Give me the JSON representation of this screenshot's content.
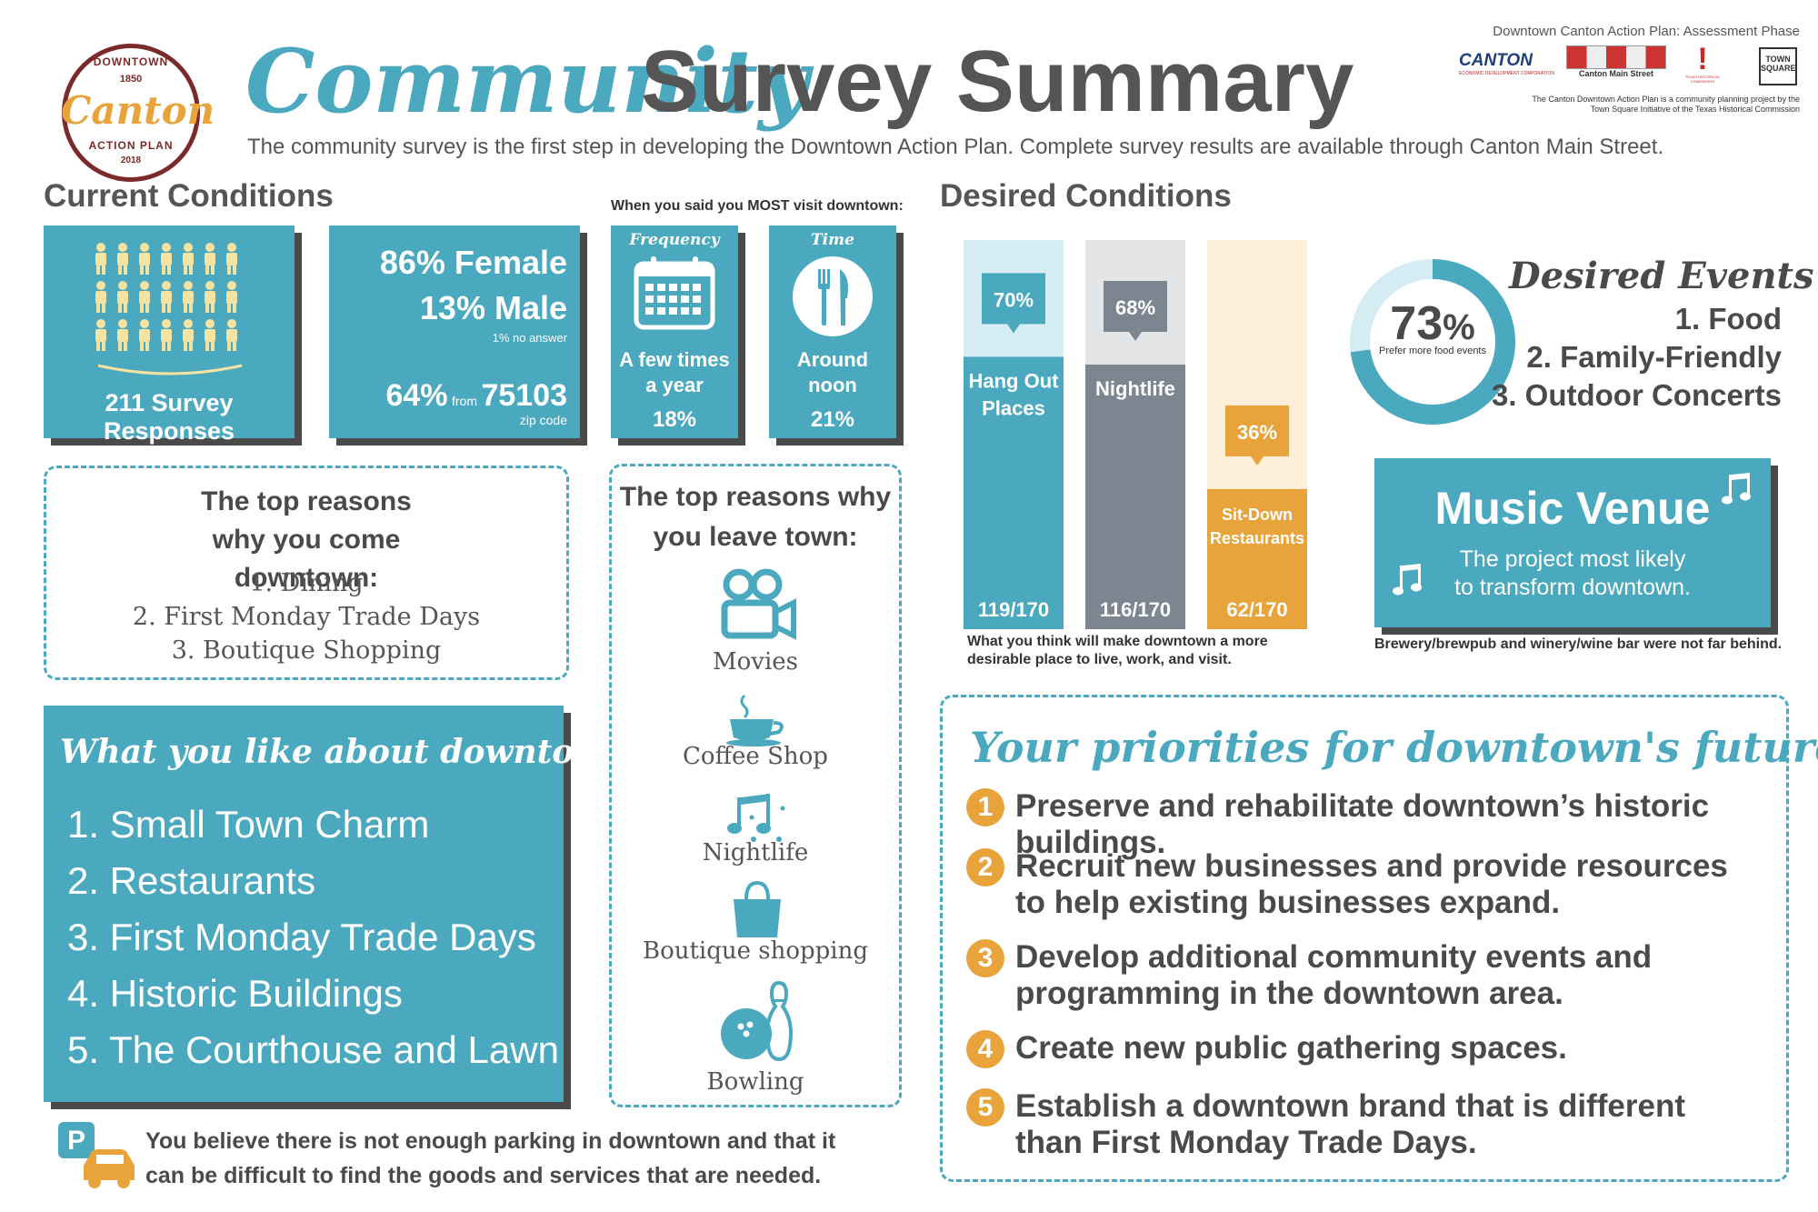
{
  "header": {
    "logo_line1": "DOWNTOWN",
    "logo_word": "Canton",
    "logo_year": "1850",
    "logo_line2": "ACTION PLAN",
    "logo_year2": "2018",
    "title_script": "Community",
    "title_main": "Survey Summary",
    "subtitle": "The community survey is the first step in developing the Downtown Action Plan. Complete survey results are available through Canton Main Street.",
    "phase": "Downtown Canton Action Plan: Assessment Phase",
    "partner1": "CANTON",
    "partner1_sub": "ECONOMIC DEVELOPMENT CORPORATION",
    "partner2": "Canton Main Street",
    "partner3": "TEXAS HISTORICAL COMMISSION",
    "partner4": "TOWN SQUARE",
    "credit": "The Canton Downtown Action Plan is a community planning project by the Town Square Initiative of the Texas Historical Commission"
  },
  "current": {
    "heading": "Current Conditions",
    "responses": "211 Survey Responses",
    "female": "86% Female",
    "male": "13% Male",
    "no_answer": "1% no answer",
    "zip_pct": "64%",
    "zip_from": "from",
    "zip_code": "75103",
    "zip_label": "zip code",
    "visit_caption": "When you said you MOST visit downtown:",
    "freq_label": "Frequency",
    "freq_value": "A few times a year",
    "freq_pct": "18%",
    "time_label": "Time",
    "time_value": "Around noon",
    "time_pct": "21%"
  },
  "reasons_come": {
    "heading": "The top reasons why you come downtown:",
    "items": [
      "1. Dining",
      "2. First Monday Trade Days",
      "3. Boutique Shopping"
    ]
  },
  "reasons_leave": {
    "heading": "The top reasons why you leave town:",
    "items": [
      "Movies",
      "Coffee Shop",
      "Nightlife",
      "Boutique shopping",
      "Bowling"
    ]
  },
  "likes": {
    "heading": "What you like about downtown:",
    "items": [
      "1. Small Town Charm",
      "2. Restaurants",
      "3. First Monday Trade Days",
      "4. Historic Buildings",
      "5. The Courthouse and Lawn"
    ]
  },
  "parking": {
    "icon_letter": "P",
    "text": "You believe there is not enough parking in downtown and that it can be difficult to find the goods and services that are needed."
  },
  "desired": {
    "heading": "Desired Conditions",
    "caption": "What you think will make downtown a more desirable place to live, work, and visit."
  },
  "chart_data": {
    "type": "bar",
    "categories": [
      "Hang Out Places",
      "Nightlife",
      "Sit-Down Restaurants"
    ],
    "values": [
      70,
      68,
      36
    ],
    "labels": [
      "70%",
      "68%",
      "36%"
    ],
    "counts": [
      "119/170",
      "116/170",
      "62/170"
    ],
    "ylim": [
      0,
      100
    ],
    "colors": [
      "#4ba9bf",
      "#7b8691",
      "#e8a43a"
    ],
    "bg_colors": [
      "#d6edf3",
      "#e4e5e7",
      "#fdefd8"
    ]
  },
  "food": {
    "value": 73,
    "pct": "73",
    "pct_sign": "%",
    "caption": "Prefer more food events"
  },
  "events": {
    "heading": "Desired Events",
    "items": [
      "1. Food",
      "2. Family-Friendly",
      "3. Outdoor Concerts"
    ]
  },
  "music": {
    "title": "Music Venue",
    "text": "The project most likely to transform downtown.",
    "footnote": "Brewery/brewpub and winery/wine bar were not far behind."
  },
  "priorities": {
    "heading": "Your priorities for downtown's future:",
    "items": [
      {
        "n": "1",
        "text": "Preserve and rehabilitate downtown’s historic buildings."
      },
      {
        "n": "2",
        "text": "Recruit new businesses and provide resources to help existing businesses expand."
      },
      {
        "n": "3",
        "text": "Develop additional community events and programming in the downtown area."
      },
      {
        "n": "4",
        "text": "Create new public gathering spaces."
      },
      {
        "n": "5",
        "text": "Establish a downtown brand that is different than First Monday Trade Days."
      }
    ]
  },
  "colors": {
    "teal": "#4ba9bf",
    "gray": "#4a4a4a",
    "orange": "#e8a43a",
    "slate": "#7b8691"
  }
}
